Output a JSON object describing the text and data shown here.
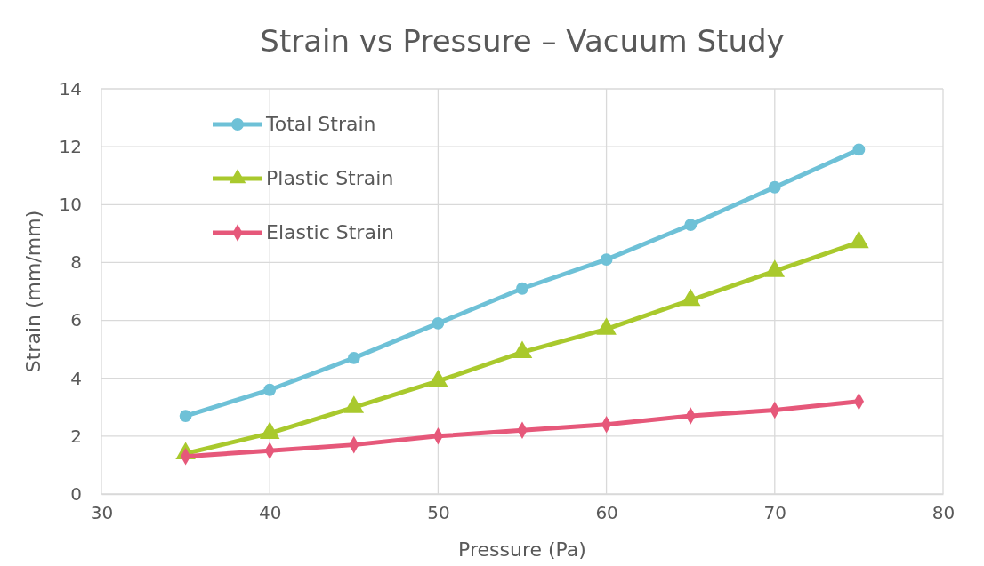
{
  "chart_data": {
    "type": "line",
    "title": "Strain vs Pressure – Vacuum Study",
    "xlabel": "Pressure (Pa)",
    "ylabel": "Strain (mm/mm)",
    "x": [
      35,
      40,
      45,
      50,
      55,
      60,
      65,
      70,
      75
    ],
    "xlim": [
      30,
      80
    ],
    "xticks": [
      30,
      40,
      50,
      60,
      70,
      80
    ],
    "ylim": [
      0,
      14
    ],
    "yticks": [
      0,
      2,
      4,
      6,
      8,
      10,
      12,
      14
    ],
    "grid": true,
    "legend": "top left",
    "series": [
      {
        "name": "Total Strain",
        "color": "#6ec1d7",
        "marker": "circle",
        "values": [
          2.7,
          3.6,
          4.7,
          5.9,
          7.1,
          8.1,
          9.3,
          10.6,
          11.9
        ]
      },
      {
        "name": "Plastic Strain",
        "color": "#a9c92d",
        "marker": "triangle",
        "values": [
          1.4,
          2.1,
          3.0,
          3.9,
          4.9,
          5.7,
          6.7,
          7.7,
          8.7
        ]
      },
      {
        "name": "Elastic Strain",
        "color": "#e6587a",
        "marker": "diamond",
        "values": [
          1.3,
          1.5,
          1.7,
          2.0,
          2.2,
          2.4,
          2.7,
          2.9,
          3.2
        ]
      }
    ]
  }
}
